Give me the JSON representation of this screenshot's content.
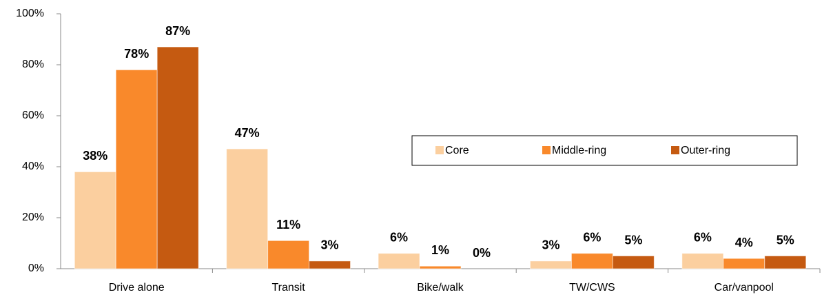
{
  "chart_data": {
    "type": "bar",
    "categories": [
      "Drive alone",
      "Transit",
      "Bike/walk",
      "TW/CWS",
      "Car/vanpool"
    ],
    "series": [
      {
        "name": "Core",
        "color": "#fbcf9f",
        "values": [
          38,
          47,
          6,
          3,
          6
        ],
        "value_labels": [
          "38%",
          "47%",
          "6%",
          "3%",
          "6%"
        ]
      },
      {
        "name": "Middle-ring",
        "color": "#f9892b",
        "values": [
          78,
          11,
          1,
          6,
          4
        ],
        "value_labels": [
          "78%",
          "11%",
          "1%",
          "6%",
          "4%"
        ]
      },
      {
        "name": "Outer-ring",
        "color": "#c55a11",
        "values": [
          87,
          3,
          0,
          5,
          5
        ],
        "value_labels": [
          "87%",
          "3%",
          "0%",
          "5%",
          "5%"
        ]
      }
    ],
    "ylim": [
      0,
      100
    ],
    "yticks": [
      {
        "value": 0,
        "label": "0%"
      },
      {
        "value": 20,
        "label": "20%"
      },
      {
        "value": 40,
        "label": "40%"
      },
      {
        "value": 60,
        "label": "60%"
      },
      {
        "value": 80,
        "label": "80%"
      },
      {
        "value": 100,
        "label": "100%"
      }
    ],
    "grid": false,
    "legend": "center-right"
  }
}
